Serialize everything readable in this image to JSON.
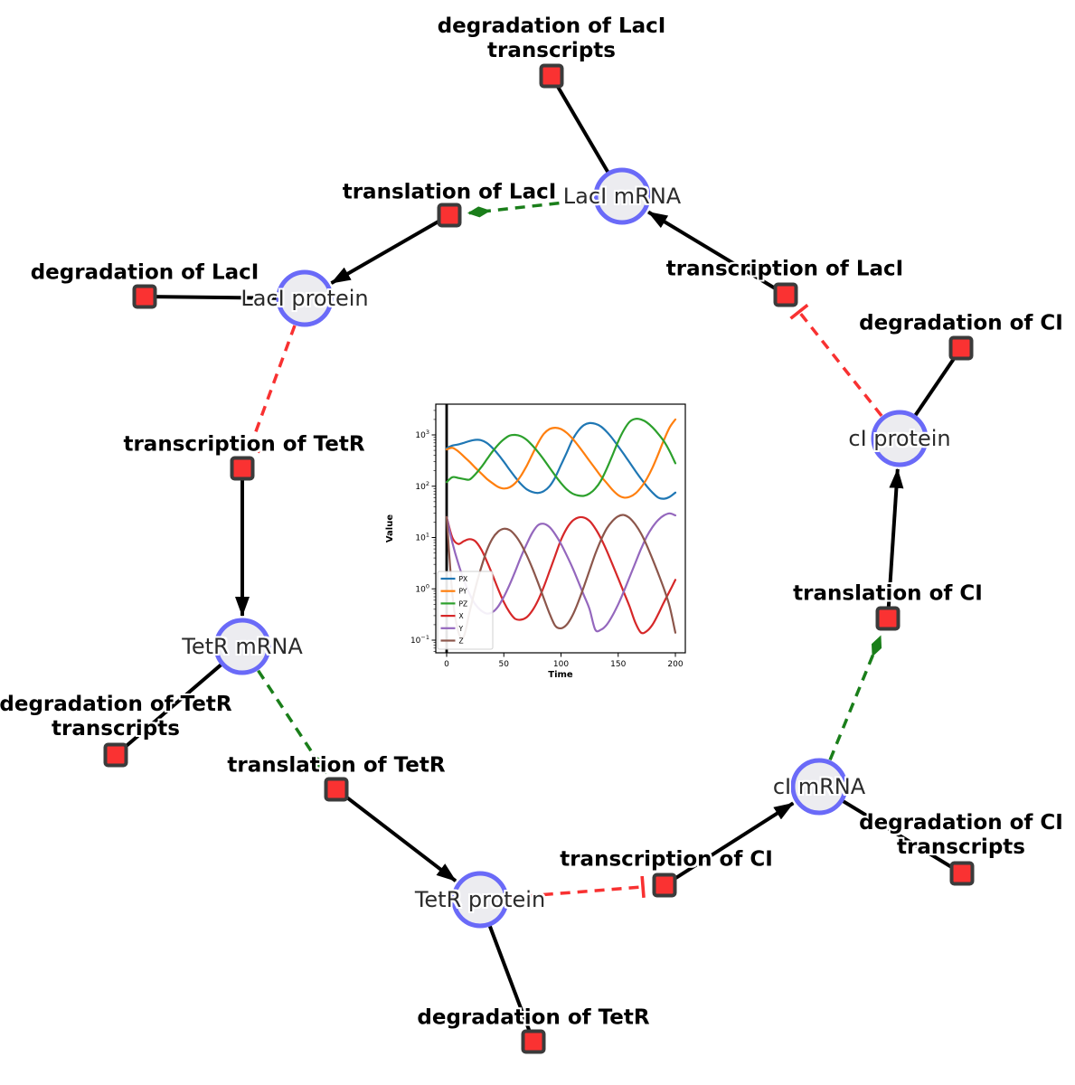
{
  "figure": {
    "background": "#ffffff",
    "styles": {
      "species_fill": "#ececf0",
      "species_border": "#6a6af8",
      "reaction_fill": "#fa3232",
      "reaction_border": "#3b3b3b",
      "edge_black": "#000000",
      "edge_activation": "#1a7e1a",
      "edge_inhibition": "#f83131"
    },
    "species_nodes": [
      {
        "id": "laci-mrna",
        "label": "LacI mRNA"
      },
      {
        "id": "laci-protein",
        "label": "LacI protein"
      },
      {
        "id": "tetr-mrna",
        "label": "TetR mRNA"
      },
      {
        "id": "tetr-protein",
        "label": "TetR protein"
      },
      {
        "id": "ci-mrna",
        "label": "cI mRNA"
      },
      {
        "id": "ci-protein",
        "label": "cI protein"
      }
    ],
    "reaction_nodes": [
      {
        "id": "degradation-laci-transcripts",
        "label": "degradation of LacI\ntranscripts"
      },
      {
        "id": "translation-laci",
        "label": "translation of LacI"
      },
      {
        "id": "transcription-laci",
        "label": "transcription of LacI"
      },
      {
        "id": "degradation-laci",
        "label": "degradation of LacI"
      },
      {
        "id": "transcription-tetr",
        "label": "transcription of TetR"
      },
      {
        "id": "degradation-tetr-transcripts",
        "label": "degradation of TetR\ntranscripts"
      },
      {
        "id": "translation-tetr",
        "label": "translation of TetR"
      },
      {
        "id": "degradation-tetr",
        "label": "degradation of TetR"
      },
      {
        "id": "transcription-ci",
        "label": "transcription of CI"
      },
      {
        "id": "degradation-ci-transcripts",
        "label": "degradation of CI\ntranscripts"
      },
      {
        "id": "translation-ci",
        "label": "translation of CI"
      },
      {
        "id": "degradation-ci",
        "label": "degradation of CI"
      }
    ],
    "edges": [
      {
        "from": "laci-mrna",
        "to": "degradation-laci-transcripts",
        "type": "plain"
      },
      {
        "from": "laci-protein",
        "to": "degradation-laci",
        "type": "plain"
      },
      {
        "from": "tetr-mrna",
        "to": "degradation-tetr-transcripts",
        "type": "plain"
      },
      {
        "from": "tetr-protein",
        "to": "degradation-tetr",
        "type": "plain"
      },
      {
        "from": "ci-mrna",
        "to": "degradation-ci-transcripts",
        "type": "plain"
      },
      {
        "from": "ci-protein",
        "to": "degradation-ci",
        "type": "plain"
      },
      {
        "from": "translation-laci",
        "to": "laci-protein",
        "type": "production-arrow"
      },
      {
        "from": "transcription-laci",
        "to": "laci-mrna",
        "type": "production-arrow"
      },
      {
        "from": "transcription-tetr",
        "to": "tetr-mrna",
        "type": "production-arrow"
      },
      {
        "from": "translation-tetr",
        "to": "tetr-protein",
        "type": "production-arrow"
      },
      {
        "from": "transcription-ci",
        "to": "ci-mrna",
        "type": "production-arrow"
      },
      {
        "from": "translation-ci",
        "to": "ci-protein",
        "type": "production-arrow"
      },
      {
        "from": "laci-mrna",
        "to": "translation-laci",
        "type": "modifier-green-dashed"
      },
      {
        "from": "tetr-mrna",
        "to": "translation-tetr",
        "type": "modifier-green-dashed"
      },
      {
        "from": "ci-mrna",
        "to": "translation-ci",
        "type": "modifier-green-dashed"
      },
      {
        "from": "laci-protein",
        "to": "transcription-tetr",
        "type": "inhibition-red-dashed"
      },
      {
        "from": "tetr-protein",
        "to": "transcription-ci",
        "type": "inhibition-red-dashed"
      },
      {
        "from": "ci-protein",
        "to": "transcription-laci",
        "type": "inhibition-red-dashed"
      }
    ]
  },
  "chart_data": {
    "type": "line",
    "title": "",
    "xlabel": "Time",
    "ylabel": "Value",
    "x_ticks": [
      0,
      50,
      100,
      150,
      200
    ],
    "y_scale": "log",
    "y_tick_exponents": [
      -1,
      0,
      1,
      2,
      3
    ],
    "y_tick_exponents_display": [
      "−1",
      "0",
      "1",
      "2",
      "3"
    ],
    "xlim": [
      -9.5,
      209
    ],
    "ylim": [
      0.056,
      3970
    ],
    "legend_position": "lower left",
    "vline_x": 0,
    "x": [
      0,
      5,
      10,
      15,
      20,
      25,
      30,
      35,
      40,
      45,
      50,
      55,
      60,
      65,
      70,
      75,
      80,
      85,
      90,
      95,
      100,
      105,
      110,
      115,
      120,
      125,
      130,
      135,
      140,
      145,
      150,
      155,
      160,
      165,
      170,
      175,
      180,
      185,
      190,
      195,
      200
    ],
    "series": [
      {
        "name": "PX",
        "color": "#1f77b4",
        "values": [
          550,
          620,
          650,
          700,
          760,
          800,
          790,
          700,
          560,
          420,
          300,
          210,
          150,
          110,
          87,
          77,
          74,
          80,
          100,
          150,
          260,
          450,
          800,
          1200,
          1550,
          1700,
          1650,
          1450,
          1150,
          850,
          600,
          420,
          290,
          200,
          140,
          100,
          75,
          60,
          57,
          62,
          75
        ]
      },
      {
        "name": "PY",
        "color": "#ff7f0e",
        "values": [
          520,
          560,
          480,
          380,
          300,
          230,
          180,
          140,
          115,
          97,
          90,
          95,
          115,
          160,
          250,
          420,
          700,
          1050,
          1300,
          1380,
          1300,
          1100,
          850,
          620,
          440,
          310,
          220,
          155,
          115,
          85,
          67,
          60,
          62,
          72,
          95,
          140,
          230,
          420,
          800,
          1400,
          2000
        ]
      },
      {
        "name": "PZ",
        "color": "#2ca02c",
        "values": [
          120,
          150,
          145,
          138,
          135,
          170,
          230,
          330,
          470,
          640,
          820,
          970,
          1000,
          940,
          800,
          620,
          460,
          330,
          230,
          160,
          115,
          87,
          72,
          66,
          65,
          72,
          90,
          130,
          220,
          400,
          750,
          1250,
          1800,
          2050,
          2000,
          1750,
          1400,
          1050,
          750,
          480,
          280
        ]
      },
      {
        "name": "X",
        "color": "#d62728",
        "values": [
          25,
          10,
          7.5,
          8.5,
          9.3,
          8.5,
          6,
          3.5,
          1.9,
          1.0,
          0.55,
          0.35,
          0.26,
          0.25,
          0.28,
          0.38,
          0.6,
          1.1,
          2.2,
          4.5,
          9,
          15,
          21,
          24.5,
          24.5,
          21,
          15,
          9.5,
          5.5,
          3.0,
          1.6,
          0.85,
          0.45,
          0.22,
          0.14,
          0.15,
          0.2,
          0.32,
          0.55,
          0.9,
          1.5
        ]
      },
      {
        "name": "Y",
        "color": "#9467bd",
        "values": [
          25,
          8,
          3.2,
          1.5,
          0.8,
          0.5,
          0.38,
          0.33,
          0.35,
          0.45,
          0.7,
          1.2,
          2.2,
          4.2,
          7.5,
          12.5,
          17.5,
          18.5,
          16,
          11.5,
          7.5,
          4.5,
          2.6,
          1.4,
          0.75,
          0.4,
          0.16,
          0.16,
          0.2,
          0.3,
          0.5,
          0.9,
          1.7,
          3.2,
          6,
          10.5,
          16,
          22,
          27,
          29.5,
          27
        ]
      },
      {
        "name": "Z",
        "color": "#8c564b",
        "values": [
          25,
          0.8,
          0.15,
          0.12,
          0.35,
          1.0,
          2.5,
          5.5,
          9.5,
          13,
          14.8,
          14,
          11,
          7.5,
          4.5,
          2.5,
          1.3,
          0.65,
          0.33,
          0.19,
          0.17,
          0.2,
          0.3,
          0.55,
          1.1,
          2.3,
          4.8,
          9,
          15,
          21,
          26,
          27.5,
          24,
          18,
          12,
          7,
          3.8,
          2.0,
          1.0,
          0.45,
          0.14
        ]
      }
    ]
  }
}
